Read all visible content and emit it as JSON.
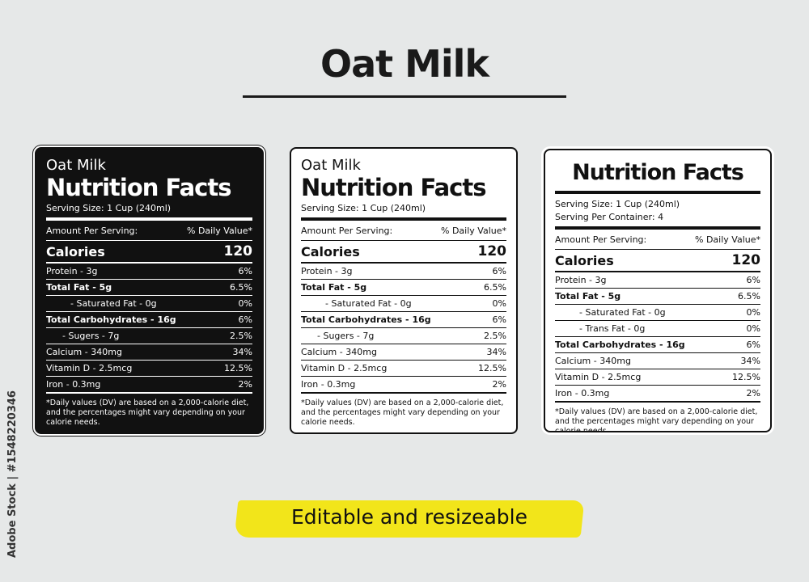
{
  "title": "Oat Milk",
  "footer": "Editable and  resizeable",
  "side_credit": "Adobe Stock | #1548220346",
  "cards": [
    {
      "variant": "dark",
      "product": "Oat Milk",
      "heading": "Nutrition Facts",
      "serving": "Serving Size: 1 Cup (240ml)",
      "amount_label": "Amount Per Serving:",
      "dv_label": "% Daily Value*",
      "calories_label": "Calories",
      "calories_value": "120",
      "rows": [
        {
          "label": "Protein - 3g",
          "value": "6%"
        },
        {
          "label": "Total Fat - 5g",
          "value": "6.5%"
        },
        {
          "label": "- Saturated Fat - 0g",
          "value": "0%"
        },
        {
          "label": "Total Carbohydrates - 16g",
          "value": "6%"
        },
        {
          "label": "- Sugers - 7g",
          "value": "2.5%"
        },
        {
          "label": "Calcium - 340mg",
          "value": "34%"
        },
        {
          "label": "Vitamin D - 2.5mcg",
          "value": "12.5%"
        },
        {
          "label": "Iron - 0.3mg",
          "value": "2%"
        }
      ],
      "footnote": "*Daily values (DV) are based on a 2,000-calorie diet, and the percentages might vary depending on your calorie needs."
    },
    {
      "variant": "light",
      "product": "Oat Milk",
      "heading": "Nutrition Facts",
      "serving": "Serving Size: 1 Cup (240ml)",
      "amount_label": "Amount Per Serving:",
      "dv_label": "% Daily Value*",
      "calories_label": "Calories",
      "calories_value": "120",
      "rows": [
        {
          "label": "Protein - 3g",
          "value": "6%"
        },
        {
          "label": "Total Fat - 5g",
          "value": "6.5%"
        },
        {
          "label": "- Saturated Fat - 0g",
          "value": "0%"
        },
        {
          "label": "Total Carbohydrates - 16g",
          "value": "6%"
        },
        {
          "label": "- Sugers - 7g",
          "value": "2.5%"
        },
        {
          "label": "Calcium - 340mg",
          "value": "34%"
        },
        {
          "label": "Vitamin D - 2.5mcg",
          "value": "12.5%"
        },
        {
          "label": "Iron - 0.3mg",
          "value": "2%"
        }
      ],
      "footnote": "*Daily values (DV) are based on a 2,000-calorie diet, and the percentages might vary depending on your calorie needs."
    },
    {
      "variant": "light",
      "heading": "Nutrition Facts",
      "serving": "Serving Size: 1 Cup (240ml)",
      "per_container": "Serving Per Container: 4",
      "amount_label": "Amount Per Serving:",
      "dv_label": "% Daily Value*",
      "calories_label": "Calories",
      "calories_value": "120",
      "rows": [
        {
          "label": "Protein - 3g",
          "value": "6%"
        },
        {
          "label": "Total Fat - 5g",
          "value": "6.5%"
        },
        {
          "label": "- Saturated Fat - 0g",
          "value": "0%"
        },
        {
          "label": "- Trans Fat - 0g",
          "value": "0%"
        },
        {
          "label": "Total Carbohydrates - 16g",
          "value": "6%"
        },
        {
          "label": "Calcium - 340mg",
          "value": "34%"
        },
        {
          "label": "Vitamin D - 2.5mcg",
          "value": "12.5%"
        },
        {
          "label": "Iron - 0.3mg",
          "value": "2%"
        }
      ],
      "footnote": "*Daily values (DV) are based on a 2,000-calorie diet, and the percentages might vary depending on your calorie needs."
    }
  ]
}
